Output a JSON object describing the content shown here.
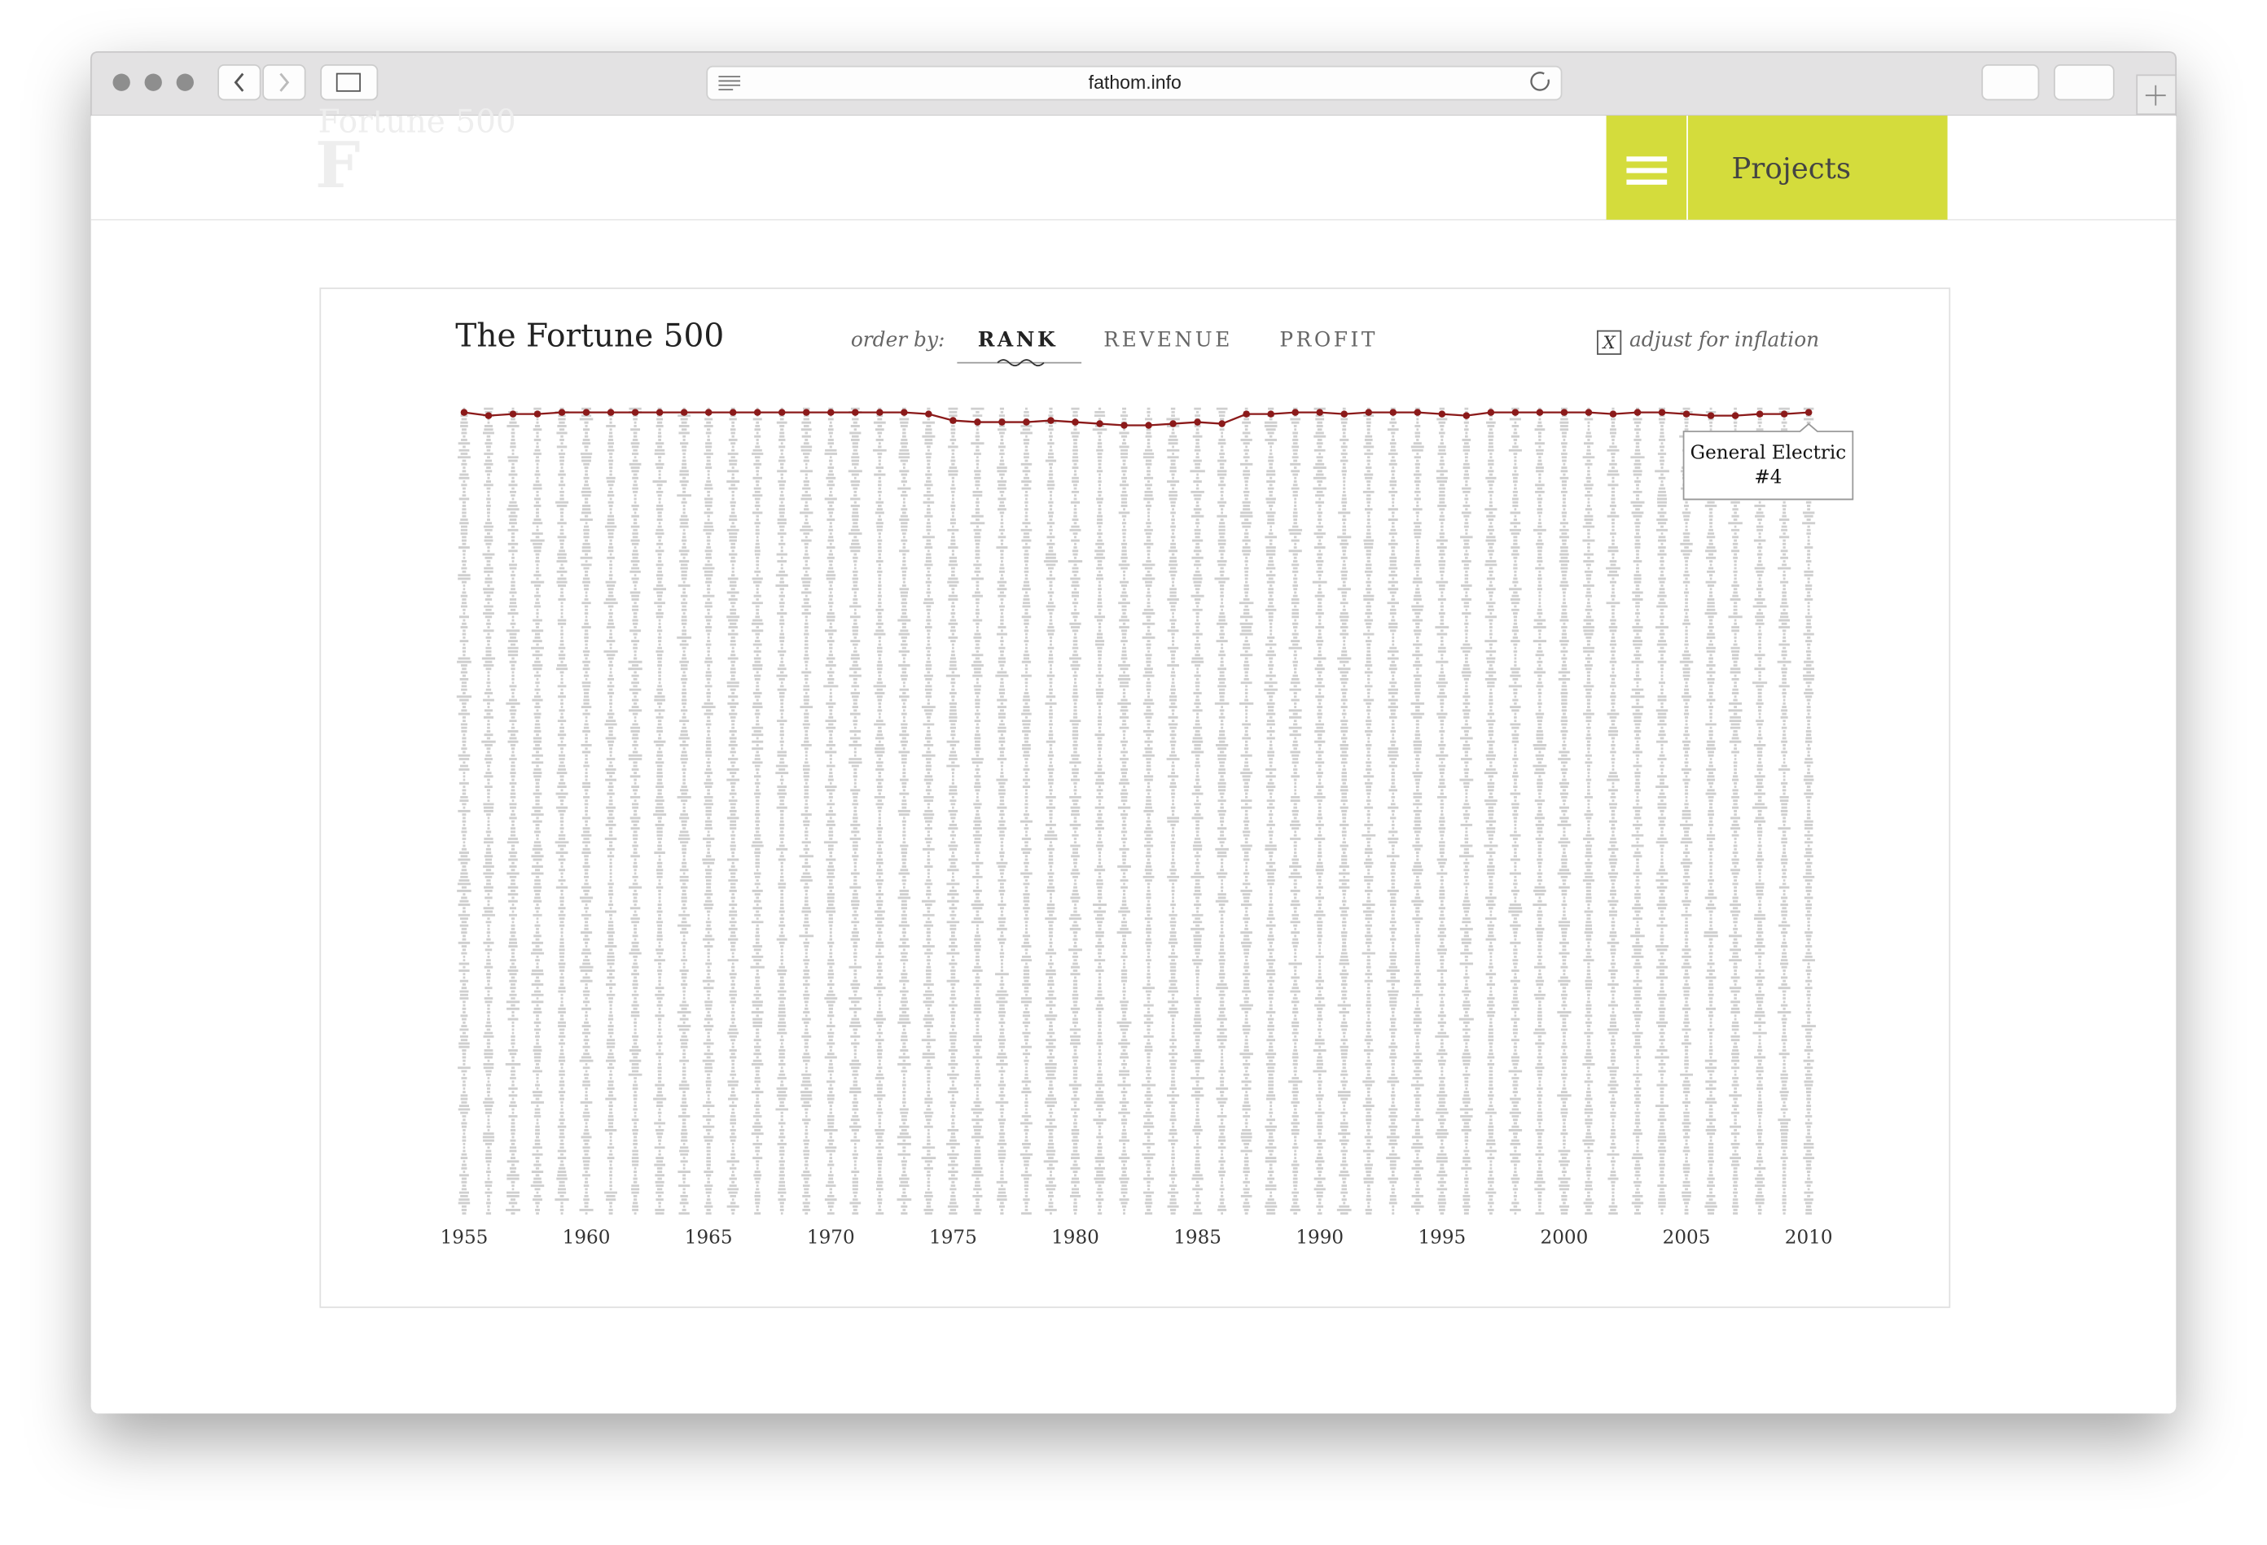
{
  "browser": {
    "url": "fathom.info"
  },
  "header": {
    "logo_title": "Fortune 500",
    "logo_letter": "F",
    "nav_button": "Projects"
  },
  "viz": {
    "title": "The Fortune 500",
    "order_by_label": "order by:",
    "order_options": [
      "RANK",
      "REVENUE",
      "PROFIT"
    ],
    "inflation_box": "X",
    "inflation_label": "adjust for inflation",
    "years": [
      1955,
      1956,
      1957,
      1958,
      1959,
      1960,
      1961,
      1962,
      1963,
      1964,
      1965,
      1966,
      1967,
      1968,
      1969,
      1970,
      1971,
      1972,
      1973,
      1974,
      1975,
      1976,
      1977,
      1978,
      1979,
      1980,
      1981,
      1982,
      1983,
      1984,
      1985,
      1986,
      1987,
      1988,
      1989,
      1990,
      1991,
      1992,
      1993,
      1994,
      1995,
      1996,
      1997,
      1998,
      1999,
      2000,
      2001,
      2002,
      2003,
      2004,
      2005,
      2006,
      2007,
      2008,
      2009,
      2010
    ],
    "ge_rank": [
      4,
      6,
      5,
      5,
      4,
      4,
      4,
      4,
      4,
      4,
      4,
      4,
      4,
      4,
      4,
      4,
      4,
      4,
      4,
      5,
      9,
      10,
      10,
      10,
      9,
      10,
      11,
      12,
      12,
      11,
      10,
      11,
      5,
      5,
      4,
      4,
      5,
      4,
      4,
      4,
      5,
      6,
      4,
      4,
      4,
      4,
      4,
      5,
      4,
      4,
      5,
      6,
      6,
      5,
      5,
      4
    ],
    "line_color": "#8b1a1a",
    "xlim": [
      1955,
      2010
    ],
    "xticks": [
      1955,
      1960,
      1965,
      1970,
      1975,
      1980,
      1985,
      1990,
      1995,
      2000,
      2005,
      2010
    ],
    "ylim": [
      1,
      500
    ],
    "tooltip": {
      "company": "General Electric",
      "rank_label": "#4"
    }
  }
}
